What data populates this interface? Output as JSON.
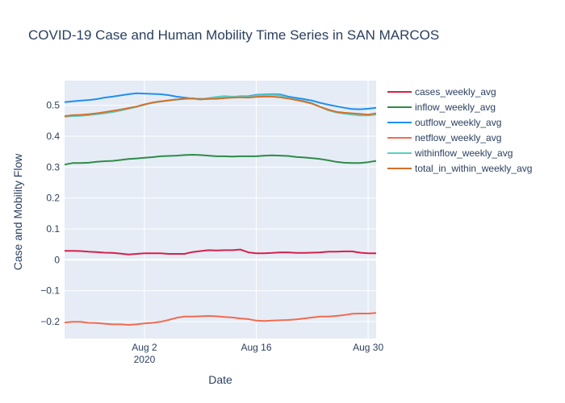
{
  "title": "COVID-19 Case and Human Mobility Time Series in SAN MARCOS",
  "chart_data": {
    "type": "line",
    "title": "COVID-19 Case and Human Mobility Time Series in SAN MARCOS",
    "xlabel": "Date",
    "ylabel": "Case and Mobility Flow",
    "x": [
      "2020-07-23",
      "2020-07-24",
      "2020-07-25",
      "2020-07-26",
      "2020-07-27",
      "2020-07-28",
      "2020-07-29",
      "2020-07-30",
      "2020-07-31",
      "2020-08-01",
      "2020-08-02",
      "2020-08-03",
      "2020-08-04",
      "2020-08-05",
      "2020-08-06",
      "2020-08-07",
      "2020-08-08",
      "2020-08-09",
      "2020-08-10",
      "2020-08-11",
      "2020-08-12",
      "2020-08-13",
      "2020-08-14",
      "2020-08-15",
      "2020-08-16",
      "2020-08-17",
      "2020-08-18",
      "2020-08-19",
      "2020-08-20",
      "2020-08-21",
      "2020-08-22",
      "2020-08-23",
      "2020-08-24",
      "2020-08-25",
      "2020-08-26",
      "2020-08-27",
      "2020-08-28",
      "2020-08-29",
      "2020-08-30",
      "2020-08-31"
    ],
    "xlim": [
      "2020-07-23",
      "2020-08-31"
    ],
    "ylim": [
      -0.255,
      0.58
    ],
    "x_ticks": [
      {
        "date": "2020-08-02",
        "label": "Aug 2",
        "sublabel": "2020"
      },
      {
        "date": "2020-08-16",
        "label": "Aug 16",
        "sublabel": ""
      },
      {
        "date": "2020-08-30",
        "label": "Aug 30",
        "sublabel": ""
      }
    ],
    "y_ticks": [
      -0.2,
      -0.1,
      0,
      0.1,
      0.2,
      0.3,
      0.4,
      0.5
    ],
    "y_tick_labels": [
      "−0.2",
      "−0.1",
      "0",
      "0.1",
      "0.2",
      "0.3",
      "0.4",
      "0.5"
    ],
    "grid": true,
    "legend_position": "right",
    "series": [
      {
        "name": "cases_weekly_avg",
        "color": "#d6204a",
        "values": [
          0.029,
          0.029,
          0.028,
          0.026,
          0.025,
          0.023,
          0.022,
          0.02,
          0.017,
          0.019,
          0.021,
          0.021,
          0.021,
          0.019,
          0.019,
          0.019,
          0.025,
          0.028,
          0.031,
          0.03,
          0.031,
          0.031,
          0.033,
          0.024,
          0.021,
          0.021,
          0.022,
          0.024,
          0.024,
          0.022,
          0.022,
          0.023,
          0.024,
          0.026,
          0.026,
          0.027,
          0.027,
          0.023,
          0.021,
          0.021
        ]
      },
      {
        "name": "inflow_weekly_avg",
        "color": "#2e8b47",
        "values": [
          0.308,
          0.313,
          0.313,
          0.314,
          0.317,
          0.319,
          0.32,
          0.323,
          0.326,
          0.328,
          0.33,
          0.332,
          0.335,
          0.336,
          0.337,
          0.339,
          0.34,
          0.339,
          0.337,
          0.335,
          0.335,
          0.334,
          0.335,
          0.335,
          0.335,
          0.337,
          0.338,
          0.337,
          0.336,
          0.333,
          0.331,
          0.329,
          0.326,
          0.322,
          0.317,
          0.314,
          0.313,
          0.313,
          0.316,
          0.32
        ]
      },
      {
        "name": "outflow_weekly_avg",
        "color": "#1f8ff0",
        "values": [
          0.51,
          0.513,
          0.515,
          0.517,
          0.52,
          0.525,
          0.528,
          0.532,
          0.536,
          0.539,
          0.538,
          0.537,
          0.536,
          0.533,
          0.528,
          0.525,
          0.522,
          0.521,
          0.521,
          0.522,
          0.524,
          0.527,
          0.529,
          0.529,
          0.534,
          0.535,
          0.536,
          0.535,
          0.528,
          0.524,
          0.52,
          0.515,
          0.508,
          0.502,
          0.497,
          0.492,
          0.488,
          0.487,
          0.489,
          0.492
        ]
      },
      {
        "name": "netflow_weekly_avg",
        "color": "#f26a4f",
        "values": [
          -0.203,
          -0.201,
          -0.201,
          -0.204,
          -0.205,
          -0.207,
          -0.209,
          -0.209,
          -0.211,
          -0.209,
          -0.206,
          -0.204,
          -0.201,
          -0.195,
          -0.188,
          -0.184,
          -0.184,
          -0.183,
          -0.182,
          -0.183,
          -0.185,
          -0.187,
          -0.19,
          -0.192,
          -0.197,
          -0.198,
          -0.197,
          -0.196,
          -0.195,
          -0.193,
          -0.19,
          -0.187,
          -0.184,
          -0.184,
          -0.182,
          -0.179,
          -0.175,
          -0.174,
          -0.174,
          -0.172
        ]
      },
      {
        "name": "withinflow_weekly_avg",
        "color": "#56cfc3",
        "values": [
          0.463,
          0.465,
          0.466,
          0.468,
          0.471,
          0.474,
          0.478,
          0.483,
          0.489,
          0.495,
          0.502,
          0.508,
          0.512,
          0.515,
          0.518,
          0.521,
          0.523,
          0.52,
          0.523,
          0.527,
          0.53,
          0.528,
          0.528,
          0.527,
          0.532,
          0.533,
          0.534,
          0.532,
          0.524,
          0.519,
          0.514,
          0.507,
          0.495,
          0.484,
          0.477,
          0.473,
          0.47,
          0.467,
          0.467,
          0.47
        ]
      },
      {
        "name": "total_in_within_weekly_avg",
        "color": "#d4702a",
        "values": [
          0.465,
          0.468,
          0.469,
          0.471,
          0.474,
          0.478,
          0.482,
          0.486,
          0.491,
          0.496,
          0.503,
          0.509,
          0.513,
          0.516,
          0.519,
          0.521,
          0.522,
          0.519,
          0.521,
          0.521,
          0.523,
          0.525,
          0.526,
          0.525,
          0.527,
          0.528,
          0.528,
          0.526,
          0.522,
          0.517,
          0.512,
          0.505,
          0.495,
          0.486,
          0.479,
          0.476,
          0.474,
          0.472,
          0.47,
          0.474
        ]
      }
    ]
  }
}
